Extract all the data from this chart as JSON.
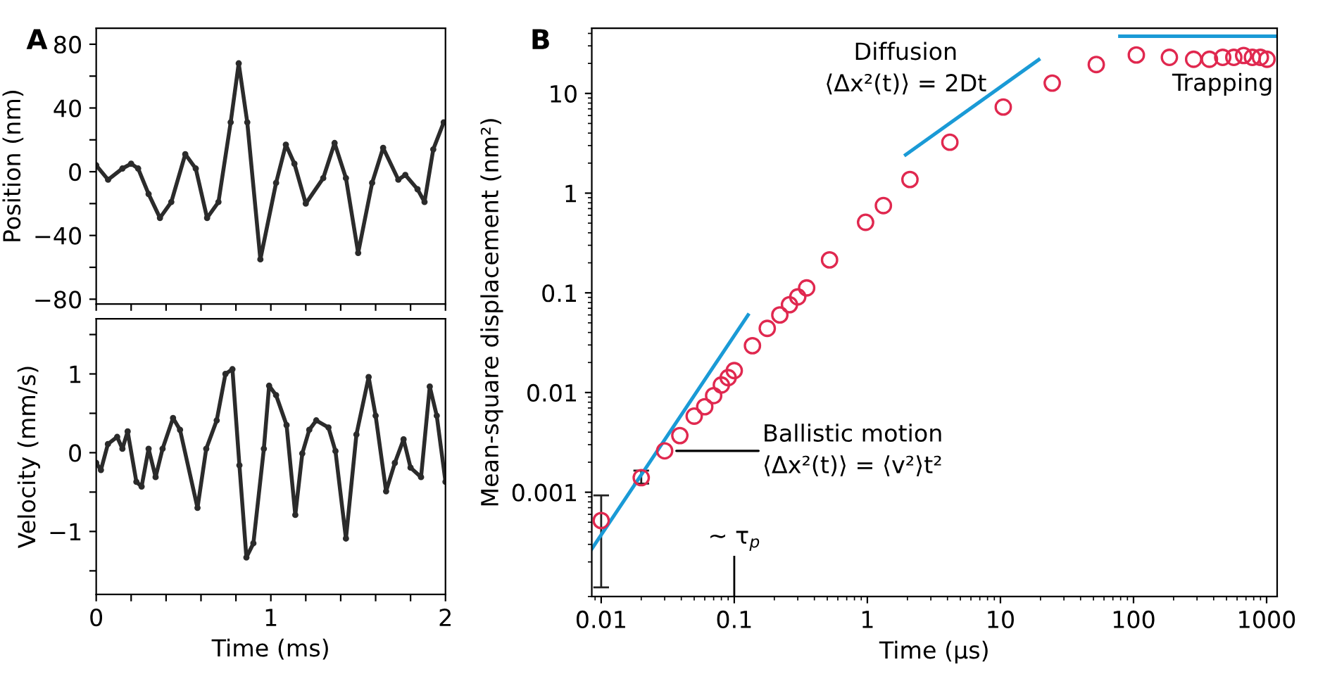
{
  "chart_data": [
    {
      "type": "line",
      "title": "A",
      "ylabel": "Position (nm)",
      "xlim": [
        0,
        2
      ],
      "ylim": [
        -83,
        90
      ],
      "tick_labels": "y",
      "marker": "circle",
      "grid": false,
      "xticks": [
        {
          "value": 0,
          "label": null
        },
        {
          "value": 0.2,
          "label": null
        },
        {
          "value": 0.4,
          "label": null
        },
        {
          "value": 0.6,
          "label": null
        },
        {
          "value": 0.8,
          "label": null
        },
        {
          "value": 1,
          "label": null
        },
        {
          "value": 1.2,
          "label": null
        },
        {
          "value": 1.4,
          "label": null
        },
        {
          "value": 1.6,
          "label": null
        },
        {
          "value": 1.8,
          "label": null
        },
        {
          "value": 2,
          "label": null
        }
      ],
      "yticks": [
        {
          "value": -80,
          "label": "−80"
        },
        {
          "value": -60,
          "label": null
        },
        {
          "value": -40,
          "label": "−40"
        },
        {
          "value": -20,
          "label": null
        },
        0,
        {
          "value": 20,
          "label": null
        },
        40,
        {
          "value": 60,
          "label": null
        },
        80
      ],
      "x": [
        0,
        0.068,
        0.15,
        0.2,
        0.24,
        0.3,
        0.365,
        0.43,
        0.51,
        0.57,
        0.635,
        0.7,
        0.77,
        0.816,
        0.865,
        0.94,
        1.03,
        1.086,
        1.135,
        1.2,
        1.3,
        1.365,
        1.43,
        1.5,
        1.58,
        1.643,
        1.73,
        1.77,
        1.84,
        1.88,
        1.93,
        1.99
      ],
      "series": [
        {
          "color": "#2b2b2b",
          "values": [
            4,
            -5,
            2,
            5,
            2,
            -14,
            -29,
            -19,
            11,
            2,
            -29,
            -19,
            31,
            68,
            31,
            -55,
            -7,
            17,
            5,
            -20,
            -4,
            18,
            -4,
            -51,
            -7,
            15,
            -5,
            -2,
            -11,
            -19,
            14,
            31
          ]
        }
      ]
    },
    {
      "type": "line",
      "xlabel": "Time (ms)",
      "ylabel": "Velocity (mm/s)",
      "xlim": [
        0,
        2
      ],
      "ylim": [
        -1.8,
        1.7
      ],
      "marker": "circle",
      "grid": false,
      "xticks": [
        0,
        {
          "value": 0.2,
          "label": null
        },
        {
          "value": 0.4,
          "label": null
        },
        {
          "value": 0.6,
          "label": null
        },
        {
          "value": 0.8,
          "label": null
        },
        1,
        {
          "value": 1.2,
          "label": null
        },
        {
          "value": 1.4,
          "label": null
        },
        {
          "value": 1.6,
          "label": null
        },
        {
          "value": 1.8,
          "label": null
        },
        2
      ],
      "yticks": [
        {
          "value": -1.5,
          "label": null
        },
        {
          "value": -1,
          "label": "−1"
        },
        {
          "value": -0.5,
          "label": null
        },
        0,
        {
          "value": 0.5,
          "label": null
        },
        1,
        {
          "value": 1.5,
          "label": null
        }
      ],
      "x": [
        0,
        0.027,
        0.067,
        0.12,
        0.15,
        0.18,
        0.23,
        0.26,
        0.3,
        0.34,
        0.38,
        0.44,
        0.48,
        0.58,
        0.63,
        0.69,
        0.74,
        0.78,
        0.82,
        0.86,
        0.9,
        0.96,
        0.99,
        1.03,
        1.09,
        1.14,
        1.18,
        1.22,
        1.26,
        1.33,
        1.37,
        1.43,
        1.49,
        1.56,
        1.6,
        1.66,
        1.71,
        1.76,
        1.8,
        1.86,
        1.91,
        1.95,
        2.0
      ],
      "series": [
        {
          "color": "#2b2b2b",
          "values": [
            -0.13,
            -0.22,
            0.11,
            0.2,
            0.05,
            0.27,
            -0.37,
            -0.43,
            0.05,
            -0.31,
            0.05,
            0.44,
            0.29,
            -0.7,
            0.05,
            0.41,
            1.0,
            1.06,
            -0.16,
            -1.33,
            -1.15,
            0.05,
            0.85,
            0.73,
            0.35,
            -0.79,
            -0.01,
            0.29,
            0.41,
            0.32,
            0.02,
            -1.09,
            0.23,
            0.96,
            0.47,
            -0.49,
            -0.13,
            0.17,
            -0.19,
            -0.31,
            0.84,
            0.47,
            -0.37
          ]
        }
      ]
    },
    {
      "type": "scatter",
      "title": "B",
      "xlabel": "Time (µs)",
      "ylabel": "Mean-square displacement (nm²)",
      "log": "xy",
      "grid": false,
      "marker": "circle",
      "xlim": [
        0.0085,
        1200
      ],
      "ylim": [
        9e-05,
        45
      ],
      "xticks": [
        0.01,
        0.1,
        1,
        10,
        100,
        1000
      ],
      "yticks": [
        0.001,
        0.01,
        0.1,
        1,
        10
      ],
      "series": [
        {
          "color": "#e0284f",
          "x": [
            0.01,
            0.02,
            0.03,
            0.039,
            0.05,
            0.06,
            0.07,
            0.08,
            0.09,
            0.1,
            0.137,
            0.177,
            0.22,
            0.26,
            0.3,
            0.35,
            0.52,
            0.97,
            1.32,
            2.09,
            4.17,
            10.5,
            24.5,
            52.5,
            105,
            186,
            283,
            372,
            468,
            567,
            672,
            782,
            898,
            1007
          ],
          "values": [
            0.00052,
            0.0014,
            0.0026,
            0.0037,
            0.0058,
            0.0072,
            0.0093,
            0.0119,
            0.0141,
            0.0166,
            0.0295,
            0.044,
            0.06,
            0.076,
            0.091,
            0.112,
            0.214,
            0.51,
            0.75,
            1.37,
            3.24,
            7.3,
            12.7,
            19.5,
            24.3,
            23,
            22,
            22,
            23,
            23,
            24,
            23,
            23,
            22
          ],
          "errors": [
            [
              0.000111,
              0.00093
            ],
            [
              0.00122,
              0.00165
            ],
            null,
            null,
            null,
            null,
            null,
            null,
            null,
            null,
            null,
            null,
            null,
            null,
            null,
            null,
            null,
            null,
            null,
            null,
            null,
            null,
            null,
            null,
            null,
            null,
            null,
            null,
            null,
            null,
            null,
            null,
            null,
            null
          ]
        },
        {
          "type": "line",
          "color": "#1a9ad6",
          "marker": "none",
          "x": [
            0.0085,
            0.127
          ],
          "values": [
            0.00027,
            0.06
          ]
        },
        {
          "type": "line",
          "color": "#1a9ad6",
          "marker": "none",
          "x": [
            1.94,
            19.4
          ],
          "values": [
            2.42,
            21.8
          ]
        },
        {
          "type": "line",
          "color": "#1a9ad6",
          "marker": "none",
          "x": [
            79,
            1200
          ],
          "values": [
            37.5,
            37.5
          ]
        }
      ],
      "ref_lines": [
        {
          "axis": "x",
          "value": 0.1,
          "label": "~ τ$_{p}$",
          "color": "#000000"
        }
      ],
      "annotations": [
        {
          "text": "Diffusion\n⟨Δx²(t)⟩ = 2Dt",
          "x": 1.94,
          "y": 2.42
        },
        {
          "text": "Ballistic motion\n⟨Δx²(t)⟩ = ⟨v²⟩t²",
          "x": 0.03,
          "y": 0.0026
        },
        {
          "text": "Trapping",
          "x": 468,
          "y": 23
        }
      ]
    }
  ]
}
